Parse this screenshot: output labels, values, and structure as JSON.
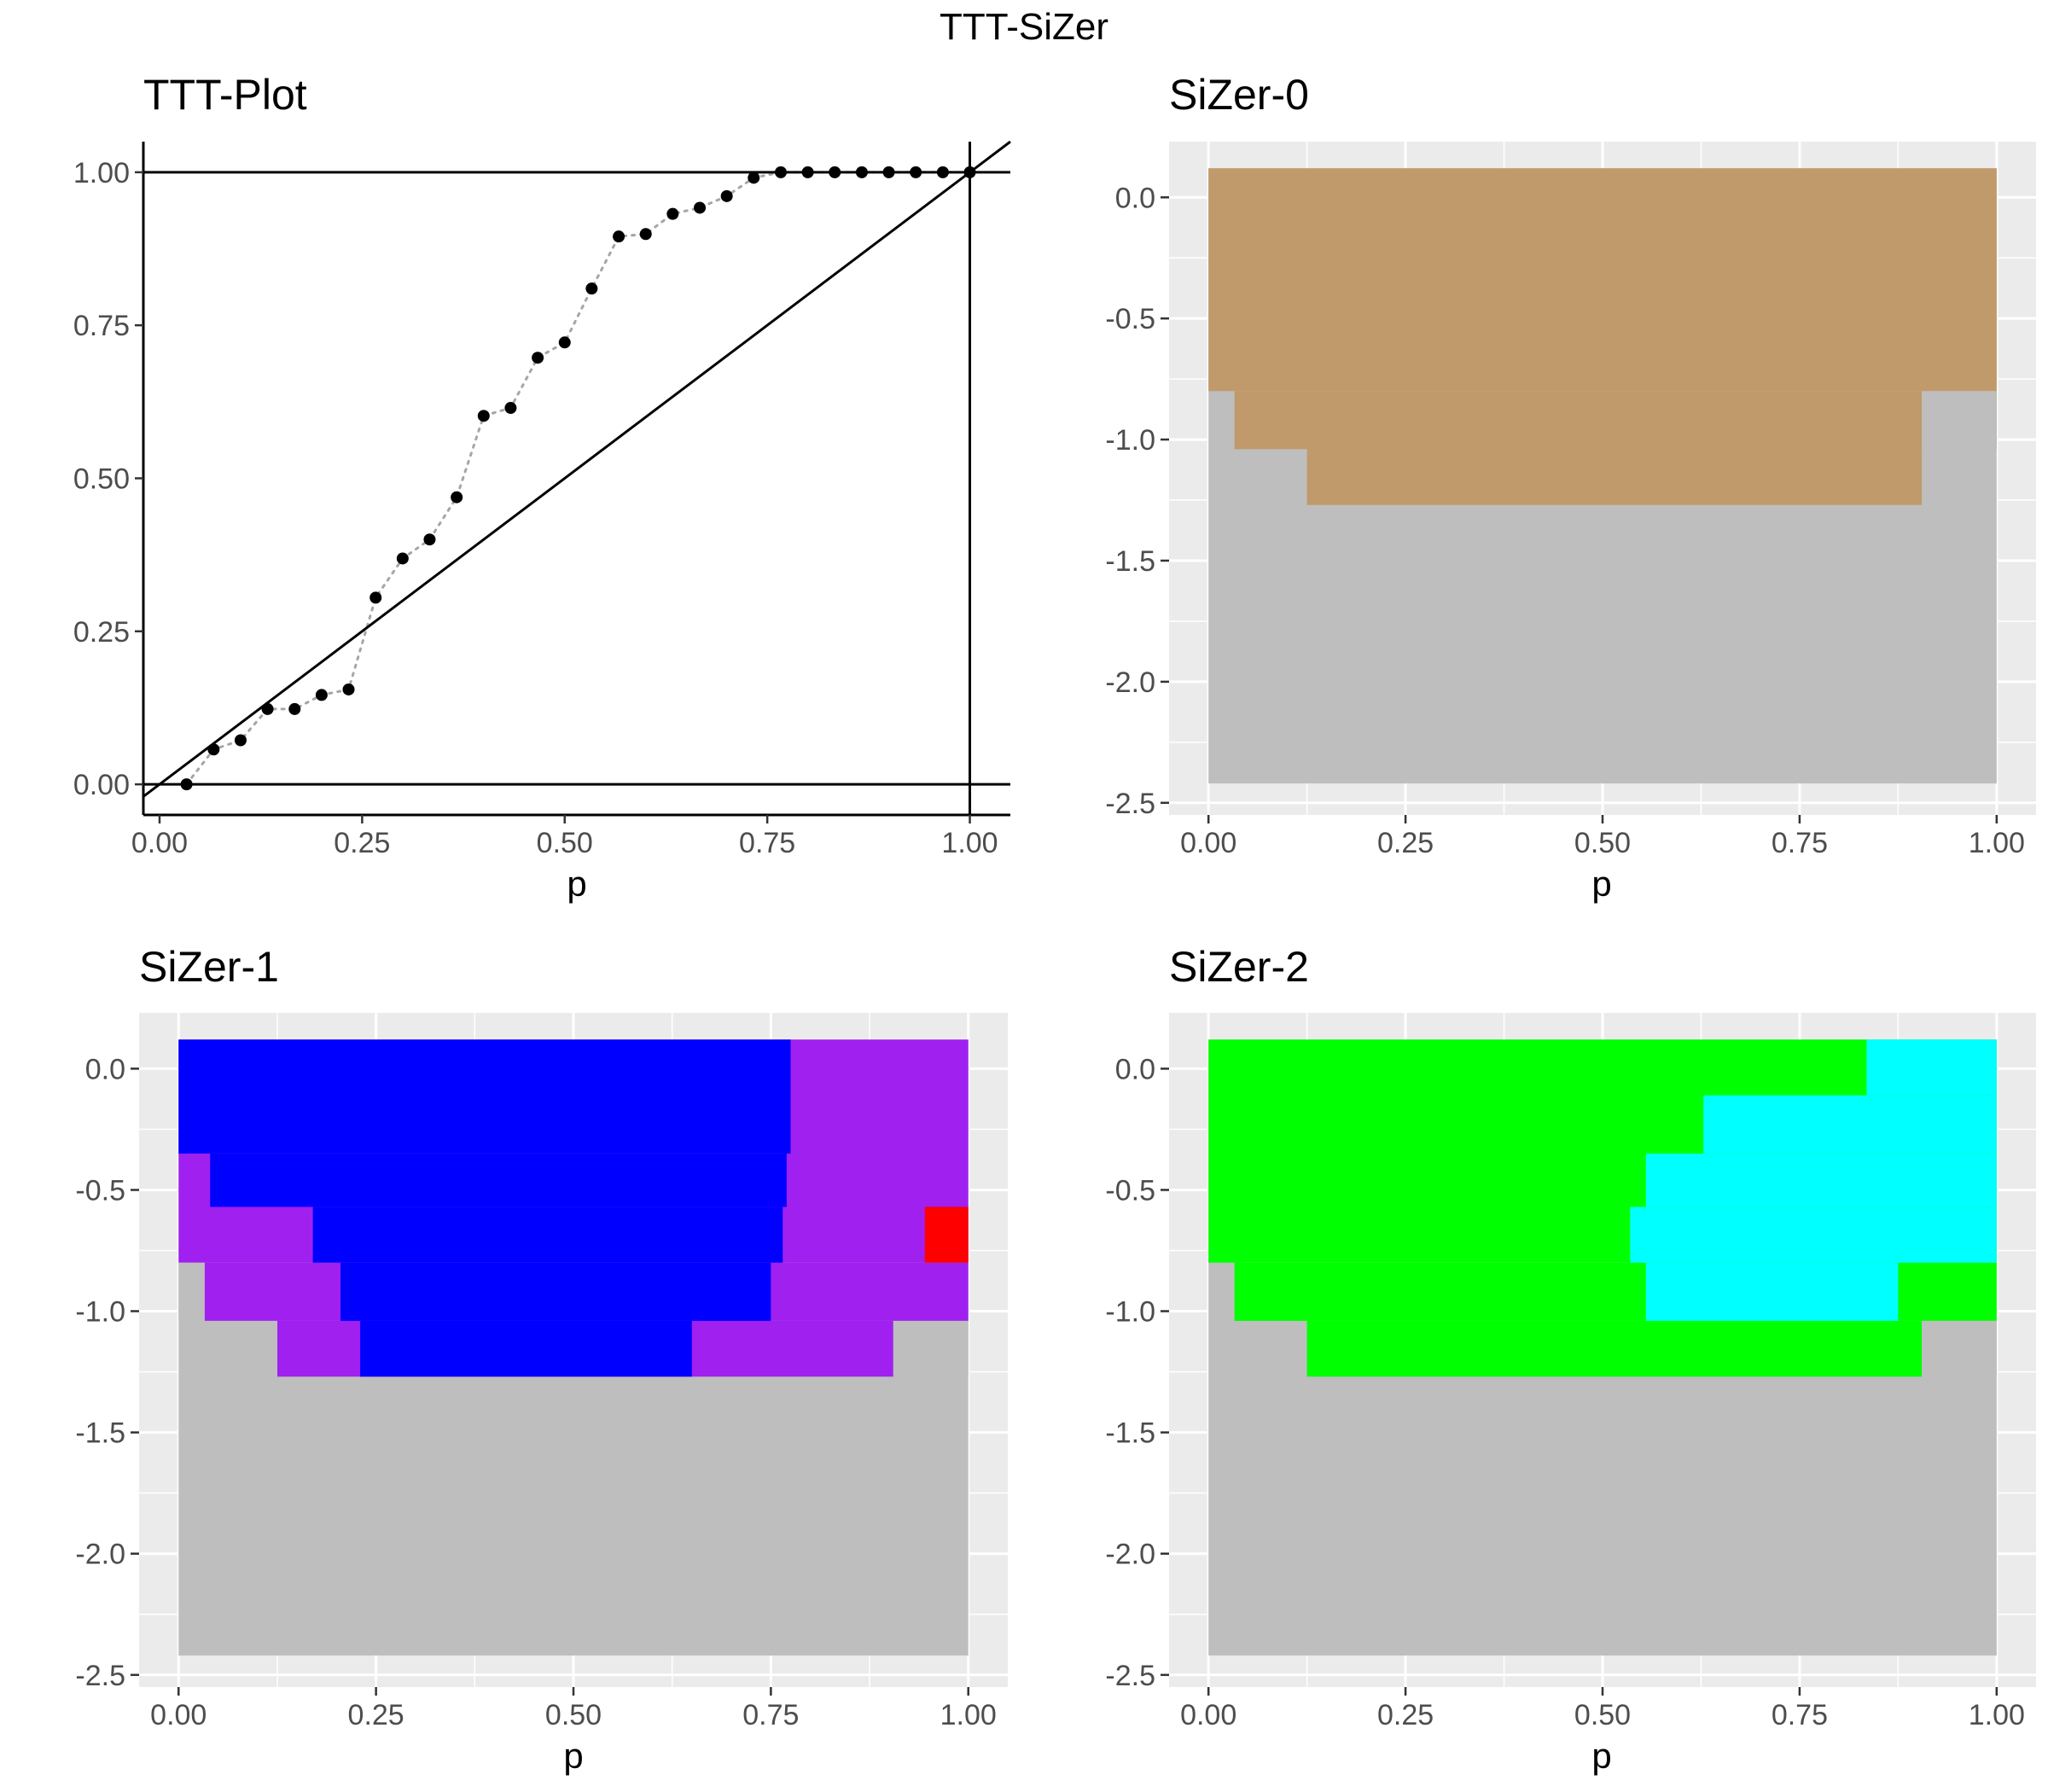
{
  "figure": {
    "title": "TTT-SiZer"
  },
  "colors": {
    "grey": "#BEBEBE",
    "tan": "#C19A6B",
    "blue": "#0000FF",
    "purple": "#A020F0",
    "red": "#FF0000",
    "green": "#00FF00",
    "cyan": "#00FFFF",
    "panel_bg": "#EBEBEB",
    "grid": "#FFFFFF"
  },
  "chart_data": [
    {
      "type": "scatter",
      "title": "TTT-Plot",
      "xlabel": "p",
      "ylabel": "",
      "xlim": [
        -0.02,
        1.05
      ],
      "ylim": [
        -0.05,
        1.05
      ],
      "xticks": [
        "0.00",
        "0.25",
        "0.50",
        "0.75",
        "1.00"
      ],
      "yticks": [
        "0.00",
        "0.25",
        "0.50",
        "0.75",
        "1.00"
      ],
      "series": [
        {
          "x": [
            0.0333,
            0.0667,
            0.1,
            0.1333,
            0.1667,
            0.2,
            0.2333,
            0.2667,
            0.3,
            0.3333,
            0.3667,
            0.4,
            0.4333,
            0.4667,
            0.5,
            0.5333,
            0.5667,
            0.6,
            0.6333,
            0.6667,
            0.7,
            0.7333,
            0.7667,
            0.8,
            0.8333,
            0.8667,
            0.9,
            0.9333,
            0.9667,
            1.0
          ],
          "y": [
            0.0,
            0.057,
            0.072,
            0.123,
            0.123,
            0.146,
            0.155,
            0.305,
            0.369,
            0.4,
            0.469,
            0.602,
            0.615,
            0.697,
            0.722,
            0.81,
            0.895,
            0.899,
            0.932,
            0.942,
            0.961,
            0.991,
            1.0,
            1.0,
            1.0,
            1.0,
            1.0,
            1.0,
            1.0,
            1.0
          ]
        }
      ],
      "reference_lines": {
        "diagonal": [
          [
            0,
            0
          ],
          [
            1,
            1
          ]
        ],
        "hlines": [
          0,
          1
        ],
        "vline": 1
      },
      "grid": false
    },
    {
      "type": "heatmap",
      "title": "SiZer-0",
      "xlabel": "p",
      "xlim": [
        -0.05,
        1.05
      ],
      "ylim": [
        -2.55,
        0.23
      ],
      "xticks": [
        "0.00",
        "0.25",
        "0.50",
        "0.75",
        "1.00"
      ],
      "yticks": [
        "0.0",
        "-0.5",
        "-1.0",
        "-1.5",
        "-2.0",
        "-2.5"
      ],
      "grid": true,
      "regions": [
        {
          "color": "grey",
          "x0": 0.0,
          "x1": 1.0,
          "y0": -2.42,
          "y1": 0.12
        },
        {
          "color": "tan",
          "x0": 0.0,
          "x1": 1.0,
          "y0": -0.8,
          "y1": 0.12
        },
        {
          "color": "tan",
          "x0": 0.033,
          "x1": 1.0,
          "y0": -1.04,
          "y1": -0.8
        },
        {
          "color": "grey",
          "x0": 0.905,
          "x1": 1.0,
          "y0": -1.04,
          "y1": -0.8
        },
        {
          "color": "tan",
          "x0": 0.125,
          "x1": 0.905,
          "y0": -1.27,
          "y1": -1.04
        }
      ]
    },
    {
      "type": "heatmap",
      "title": "SiZer-1",
      "xlabel": "p",
      "xlim": [
        -0.05,
        1.05
      ],
      "ylim": [
        -2.55,
        0.23
      ],
      "xticks": [
        "0.00",
        "0.25",
        "0.50",
        "0.75",
        "1.00"
      ],
      "yticks": [
        "0.0",
        "-0.5",
        "-1.0",
        "-1.5",
        "-2.0",
        "-2.5"
      ],
      "grid": true,
      "regions": [
        {
          "color": "grey",
          "x0": 0.0,
          "x1": 1.0,
          "y0": -2.42,
          "y1": 0.12
        },
        {
          "color": "purple",
          "x0": 0.0,
          "x1": 1.0,
          "y0": -0.8,
          "y1": 0.12
        },
        {
          "color": "purple",
          "x0": 0.033,
          "x1": 1.0,
          "y0": -1.04,
          "y1": -0.8
        },
        {
          "color": "purple",
          "x0": 0.125,
          "x1": 0.905,
          "y0": -1.27,
          "y1": -1.04
        },
        {
          "color": "blue",
          "x0": 0.0,
          "x1": 0.775,
          "y0": -0.35,
          "y1": 0.12
        },
        {
          "color": "blue",
          "x0": 0.04,
          "x1": 0.77,
          "y0": -0.57,
          "y1": -0.35
        },
        {
          "color": "blue",
          "x0": 0.17,
          "x1": 0.765,
          "y0": -0.8,
          "y1": -0.57
        },
        {
          "color": "blue",
          "x0": 0.205,
          "x1": 0.75,
          "y0": -1.04,
          "y1": -0.8
        },
        {
          "color": "blue",
          "x0": 0.23,
          "x1": 0.65,
          "y0": -1.27,
          "y1": -1.04
        },
        {
          "color": "grey",
          "x0": 0.0,
          "x1": 0.033,
          "y0": -1.04,
          "y1": -0.8
        },
        {
          "color": "grey",
          "x0": 0.033,
          "x1": 0.125,
          "y0": -1.27,
          "y1": -1.04
        },
        {
          "color": "grey",
          "x0": 0.905,
          "x1": 1.0,
          "y0": -1.27,
          "y1": -1.04
        },
        {
          "color": "red",
          "x0": 0.945,
          "x1": 1.0,
          "y0": -0.8,
          "y1": -0.57
        }
      ]
    },
    {
      "type": "heatmap",
      "title": "SiZer-2",
      "xlabel": "p",
      "xlim": [
        -0.05,
        1.05
      ],
      "ylim": [
        -2.55,
        0.23
      ],
      "xticks": [
        "0.00",
        "0.25",
        "0.50",
        "0.75",
        "1.00"
      ],
      "yticks": [
        "0.0",
        "-0.5",
        "-1.0",
        "-1.5",
        "-2.0",
        "-2.5"
      ],
      "grid": true,
      "regions": [
        {
          "color": "grey",
          "x0": 0.0,
          "x1": 1.0,
          "y0": -2.42,
          "y1": 0.12
        },
        {
          "color": "green",
          "x0": 0.0,
          "x1": 1.0,
          "y0": -0.8,
          "y1": 0.12
        },
        {
          "color": "green",
          "x0": 0.033,
          "x1": 1.0,
          "y0": -1.04,
          "y1": -0.8
        },
        {
          "color": "green",
          "x0": 0.125,
          "x1": 0.905,
          "y0": -1.27,
          "y1": -1.04
        },
        {
          "color": "cyan",
          "x0": 0.835,
          "x1": 1.0,
          "y0": -0.11,
          "y1": 0.12
        },
        {
          "color": "cyan",
          "x0": 0.628,
          "x1": 1.0,
          "y0": -0.35,
          "y1": -0.11
        },
        {
          "color": "cyan",
          "x0": 0.555,
          "x1": 1.0,
          "y0": -0.57,
          "y1": -0.35
        },
        {
          "color": "cyan",
          "x0": 0.535,
          "x1": 1.0,
          "y0": -0.8,
          "y1": -0.57
        },
        {
          "color": "cyan",
          "x0": 0.555,
          "x1": 0.875,
          "y0": -1.04,
          "y1": -0.8
        },
        {
          "color": "grey",
          "x0": 0.905,
          "x1": 1.0,
          "y0": -1.27,
          "y1": -1.04
        }
      ]
    }
  ]
}
